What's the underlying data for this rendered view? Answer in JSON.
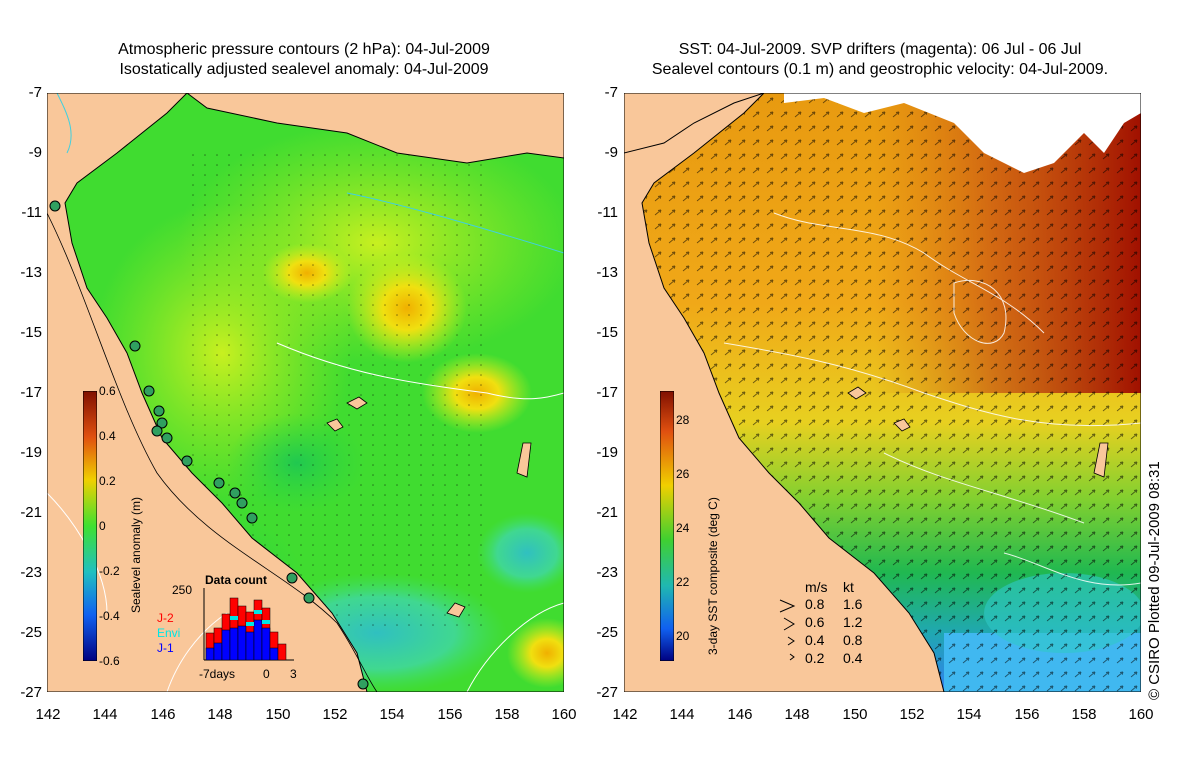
{
  "left_panel": {
    "title_line1": "Atmospheric pressure contours (2 hPa): 04-Jul-2009",
    "title_line2": "Isostatically adjusted sealevel anomaly: 04-Jul-2009",
    "colorbar": {
      "label": "Sealevel anomaly (m)",
      "ticks": [
        "0.6",
        "0.4",
        "0.2",
        "0",
        "-0.2",
        "-0.4",
        "-0.6"
      ]
    },
    "data_count": {
      "title": "Data count",
      "ymax_label": "250",
      "legend": [
        {
          "name": "J-2",
          "color": "#ff0000"
        },
        {
          "name": "Envi",
          "color": "#00e5e5"
        },
        {
          "name": "J-1",
          "color": "#0000ff"
        }
      ],
      "xlabel_start": "-7days",
      "xlabel_zero": "0",
      "xlabel_end": "3"
    }
  },
  "right_panel": {
    "title_line1": "SST: 04-Jul-2009. SVP drifters (magenta): 06 Jul - 06 Jul",
    "title_line2": "Sealevel contours (0.1 m) and geostrophic velocity: 04-Jul-2009.",
    "colorbar": {
      "label": "3-day SST composite (deg C)",
      "ticks": [
        "28",
        "26",
        "24",
        "22",
        "20"
      ]
    },
    "velocity_legend": {
      "header_ms": "m/s",
      "header_kt": "kt",
      "rows": [
        {
          "ms": "0.8",
          "kt": "1.6"
        },
        {
          "ms": "0.6",
          "kt": "1.2"
        },
        {
          "ms": "0.4",
          "kt": "0.8"
        },
        {
          "ms": "0.2",
          "kt": "0.4"
        }
      ]
    }
  },
  "axes": {
    "x_ticks": [
      "142",
      "144",
      "146",
      "148",
      "150",
      "152",
      "154",
      "156",
      "158",
      "160"
    ],
    "y_ticks": [
      "-7",
      "-9",
      "-11",
      "-13",
      "-15",
      "-17",
      "-19",
      "-21",
      "-23",
      "-25",
      "-27"
    ]
  },
  "copyright": "© CSIRO Plotted 09-Jul-2009 08:31",
  "colors": {
    "land": "#f9c79a",
    "sla_green": "#33e033",
    "sst_orange": "#f0a010",
    "sst_red": "#a01000",
    "cloud": "#ffffff"
  }
}
